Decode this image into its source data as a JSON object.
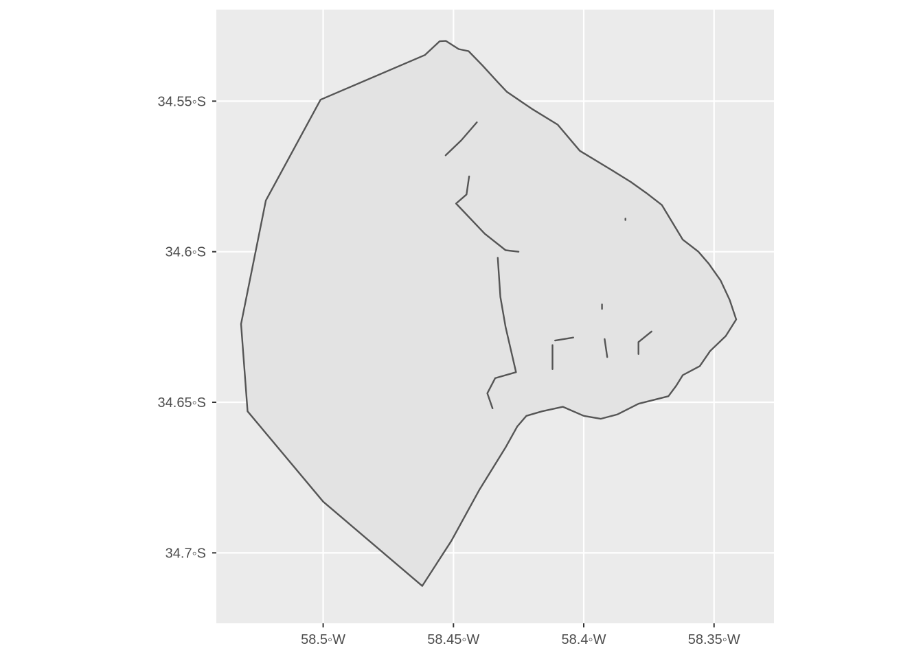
{
  "chart_data": {
    "type": "map",
    "title": "",
    "xlabel": "",
    "ylabel": "",
    "grid": true,
    "colors": {
      "panel_background": "#ebebeb",
      "grid_line": "#ffffff",
      "region_fill": "#e3e3e3",
      "region_stroke": "#555555",
      "tick_text": "#4d4d4d"
    },
    "x_axis": {
      "range": [
        -58.541,
        -58.327
      ],
      "ticks": [
        {
          "value": -58.5,
          "label": "58.5◦W"
        },
        {
          "value": -58.45,
          "label": "58.45◦W"
        },
        {
          "value": -58.4,
          "label": "58.4◦W"
        },
        {
          "value": -58.35,
          "label": "58.35◦W"
        }
      ]
    },
    "y_axis": {
      "range": [
        -34.7234,
        -34.5196
      ],
      "ticks": [
        {
          "value": -34.55,
          "label": "34.55◦S"
        },
        {
          "value": -34.6,
          "label": "34.6◦S"
        },
        {
          "value": -34.65,
          "label": "34.65◦S"
        },
        {
          "value": -34.7,
          "label": "34.7◦S"
        }
      ]
    },
    "region": {
      "name": "",
      "boundary_lon_lat": [
        [
          -58.461,
          -34.5347
        ],
        [
          -58.4553,
          -34.5301
        ],
        [
          -58.4529,
          -34.53
        ],
        [
          -58.448,
          -34.5327
        ],
        [
          -58.4442,
          -34.5334
        ],
        [
          -58.4389,
          -34.5381
        ],
        [
          -58.433,
          -34.5437
        ],
        [
          -58.4295,
          -34.5469
        ],
        [
          -58.42,
          -34.5525
        ],
        [
          -58.41,
          -34.5578
        ],
        [
          -58.4015,
          -34.5665
        ],
        [
          -58.39,
          -34.5725
        ],
        [
          -58.382,
          -34.5768
        ],
        [
          -58.376,
          -34.5805
        ],
        [
          -58.37,
          -34.5845
        ],
        [
          -58.362,
          -34.596
        ],
        [
          -58.356,
          -34.6
        ],
        [
          -58.352,
          -34.604
        ],
        [
          -58.3475,
          -34.6095
        ],
        [
          -58.344,
          -34.616
        ],
        [
          -58.3415,
          -34.6225
        ],
        [
          -58.3455,
          -34.628
        ],
        [
          -58.3515,
          -34.633
        ],
        [
          -58.3555,
          -34.638
        ],
        [
          -58.362,
          -34.641
        ],
        [
          -58.3645,
          -34.6445
        ],
        [
          -58.3675,
          -34.648
        ],
        [
          -58.379,
          -34.6505
        ],
        [
          -58.387,
          -34.654
        ],
        [
          -58.3935,
          -34.6555
        ],
        [
          -58.4,
          -34.6545
        ],
        [
          -58.408,
          -34.6515
        ],
        [
          -58.416,
          -34.653
        ],
        [
          -58.422,
          -34.6545
        ],
        [
          -58.4255,
          -34.658
        ],
        [
          -58.43,
          -34.665
        ],
        [
          -58.44,
          -34.679
        ],
        [
          -58.4508,
          -34.696
        ],
        [
          -58.462,
          -34.711
        ],
        [
          -58.5,
          -34.683
        ],
        [
          -58.529,
          -34.653
        ],
        [
          -58.5315,
          -34.624
        ],
        [
          -58.522,
          -34.583
        ],
        [
          -58.501,
          -34.5495
        ],
        [
          -58.461,
          -34.5347
        ]
      ],
      "interior_lines_lon_lat": [
        [
          [
            -58.453,
            -34.568
          ],
          [
            -58.447,
            -34.563
          ],
          [
            -58.441,
            -34.557
          ]
        ],
        [
          [
            -58.444,
            -34.575
          ],
          [
            -58.445,
            -34.581
          ],
          [
            -58.449,
            -34.584
          ],
          [
            -58.438,
            -34.594
          ],
          [
            -58.43,
            -34.5995
          ],
          [
            -58.425,
            -34.6
          ]
        ],
        [
          [
            -58.433,
            -34.602
          ],
          [
            -58.432,
            -34.615
          ],
          [
            -58.43,
            -34.625
          ],
          [
            -58.426,
            -34.64
          ],
          [
            -58.434,
            -34.642
          ],
          [
            -58.437,
            -34.647
          ],
          [
            -58.435,
            -34.652
          ]
        ],
        [
          [
            -58.412,
            -34.631
          ],
          [
            -58.412,
            -34.639
          ]
        ],
        [
          [
            -58.411,
            -34.6295
          ],
          [
            -58.404,
            -34.6285
          ]
        ],
        [
          [
            -58.392,
            -34.629
          ],
          [
            -58.391,
            -34.635
          ]
        ],
        [
          [
            -58.379,
            -34.634
          ],
          [
            -58.379,
            -34.63
          ],
          [
            -58.374,
            -34.6265
          ]
        ],
        [
          [
            -58.393,
            -34.6175
          ],
          [
            -58.393,
            -34.619
          ]
        ],
        [
          [
            -58.384,
            -34.589
          ],
          [
            -58.384,
            -34.5895
          ]
        ]
      ]
    }
  }
}
